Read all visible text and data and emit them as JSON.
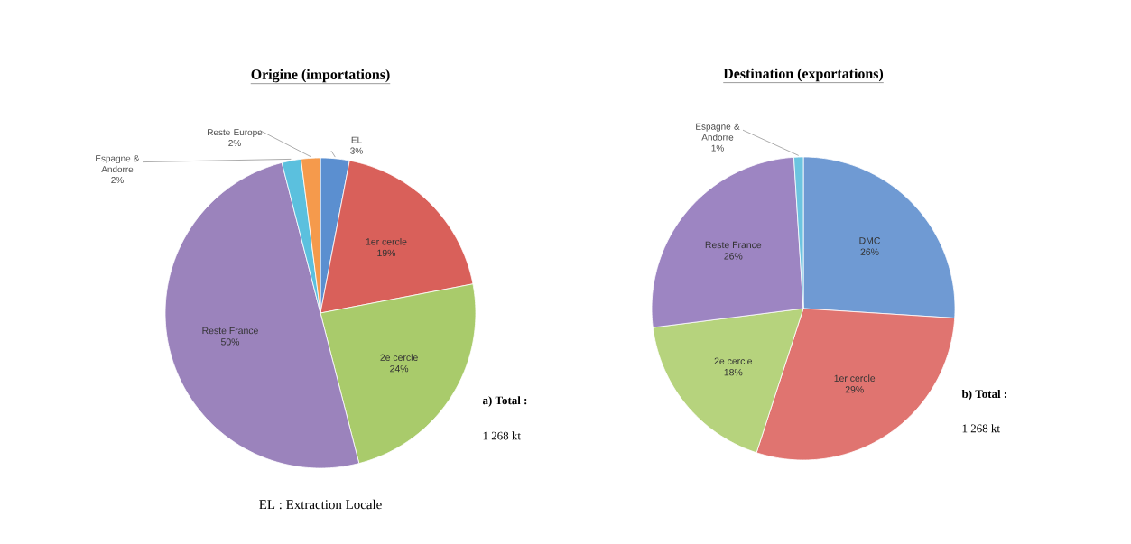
{
  "chart_data": [
    {
      "type": "pie",
      "title": "Origine (importations)",
      "categories": [
        "EL",
        "1er cercle",
        "2e cercle",
        "Reste France",
        "Espagne & Andorre",
        "Reste Europe"
      ],
      "values": [
        3,
        19,
        24,
        50,
        2,
        2
      ],
      "value_labels": [
        "3%",
        "19%",
        "24%",
        "50%",
        "2%",
        "2%"
      ],
      "colors": [
        "#5b8fd0",
        "#d9605a",
        "#a9cb6b",
        "#9b83bc",
        "#5bc0de",
        "#f59a4c"
      ],
      "annotations": [
        "a) Total :",
        "1 268 kt",
        "EL : Extraction Locale"
      ]
    },
    {
      "type": "pie",
      "title": "Destination (exportations)",
      "categories": [
        "DMC",
        "1er cercle",
        "2e cercle",
        "Reste France",
        "Espagne & Andorre"
      ],
      "values": [
        26,
        29,
        18,
        26,
        1
      ],
      "value_labels": [
        "26%",
        "29%",
        "18%",
        "26%",
        "1%"
      ],
      "colors": [
        "#6f9ad3",
        "#e07470",
        "#b6d37d",
        "#9d85c2",
        "#6cc4e0"
      ],
      "annotations": [
        "b) Total :",
        "1 268 kt"
      ]
    }
  ]
}
